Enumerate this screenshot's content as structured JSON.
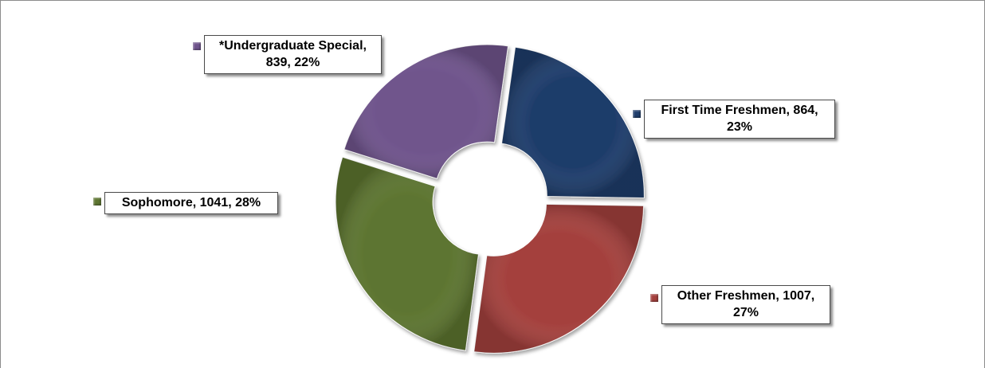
{
  "chart_data": {
    "type": "pie",
    "variant": "doughnut",
    "title": "",
    "legend": "none",
    "slices": [
      {
        "category": "First Time Freshmen",
        "value": 864,
        "percent": "23%",
        "label": "First Time Freshmen, 864, 23%",
        "color": "#1f3d6b"
      },
      {
        "category": "Other Freshmen",
        "value": 1007,
        "percent": "27%",
        "label": "Other Freshmen, 1007, 27%",
        "color": "#a4403d"
      },
      {
        "category": "Sophomore",
        "value": 1041,
        "percent": "28%",
        "label": "Sophomore, 1041, 28%",
        "color": "#5d7530"
      },
      {
        "category": "*Undergraduate Special",
        "value": 839,
        "percent": "22%",
        "label": "*Undergraduate Special, 839, 22%",
        "color": "#6f548c"
      }
    ]
  },
  "labels": {
    "first_time_freshmen": {
      "line1": "First Time Freshmen, 864,",
      "line2": "23%"
    },
    "other_freshmen": {
      "line1": "Other Freshmen, 1007,",
      "line2": "27%"
    },
    "sophomore": {
      "line1": "Sophomore, 1041, 28%"
    },
    "undergraduate_special": {
      "line1": "*Undergraduate Special,",
      "line2": "839, 22%"
    }
  }
}
